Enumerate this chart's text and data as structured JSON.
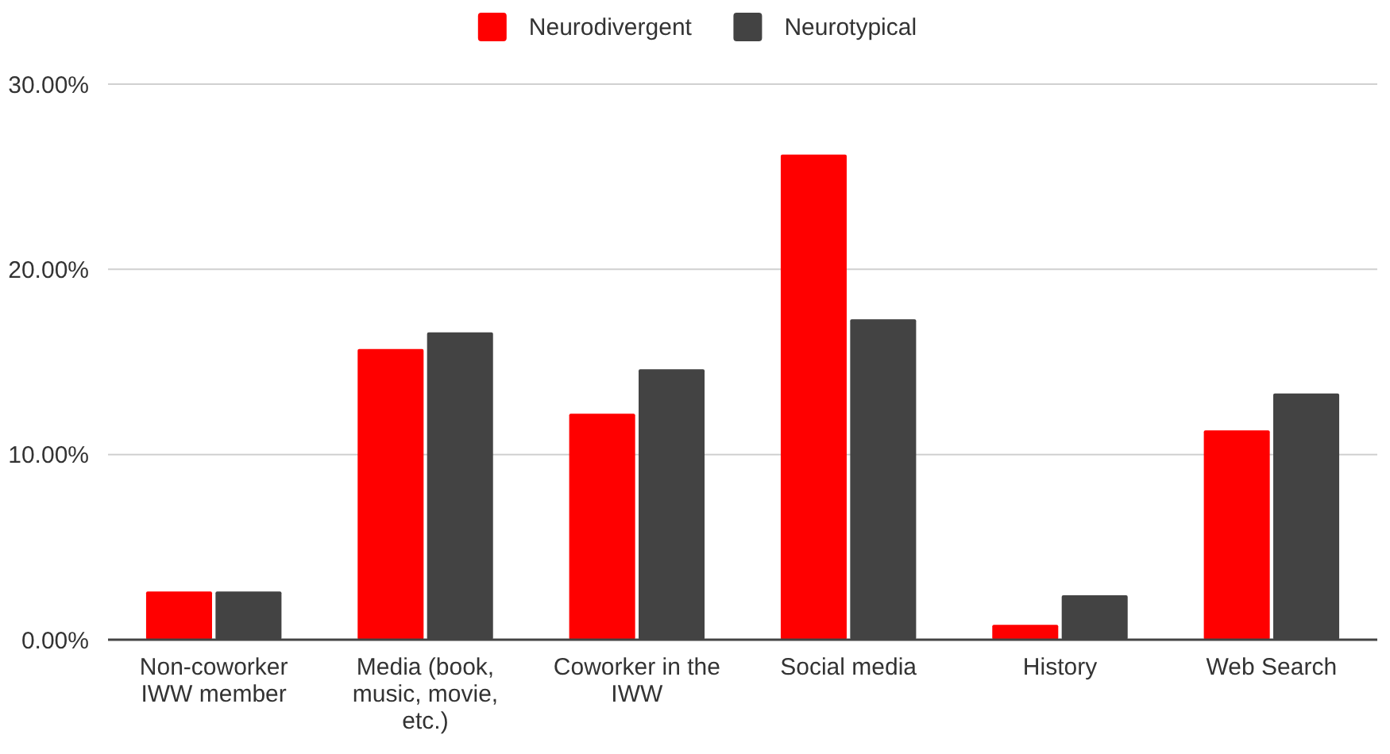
{
  "chart_data": {
    "type": "bar",
    "categories": [
      "Non-coworker IWW member",
      "Media (book, music, movie, etc.)",
      "Coworker in the IWW",
      "Social media",
      "History",
      "Web Search"
    ],
    "series": [
      {
        "name": "Neurodivergent",
        "color": "#ff0000",
        "values": [
          2.6,
          15.7,
          12.2,
          26.2,
          0.8,
          11.3
        ]
      },
      {
        "name": "Neurotypical",
        "color": "#434343",
        "values": [
          2.6,
          16.6,
          14.6,
          17.3,
          2.4,
          13.3
        ]
      }
    ],
    "ylim": [
      0,
      30
    ],
    "yticks": [
      {
        "value": 0,
        "label": "0.00%"
      },
      {
        "value": 10,
        "label": "10.00%"
      },
      {
        "value": 20,
        "label": "20.00%"
      },
      {
        "value": 30,
        "label": "30.00%"
      }
    ],
    "grid": "y",
    "legend": "top"
  }
}
